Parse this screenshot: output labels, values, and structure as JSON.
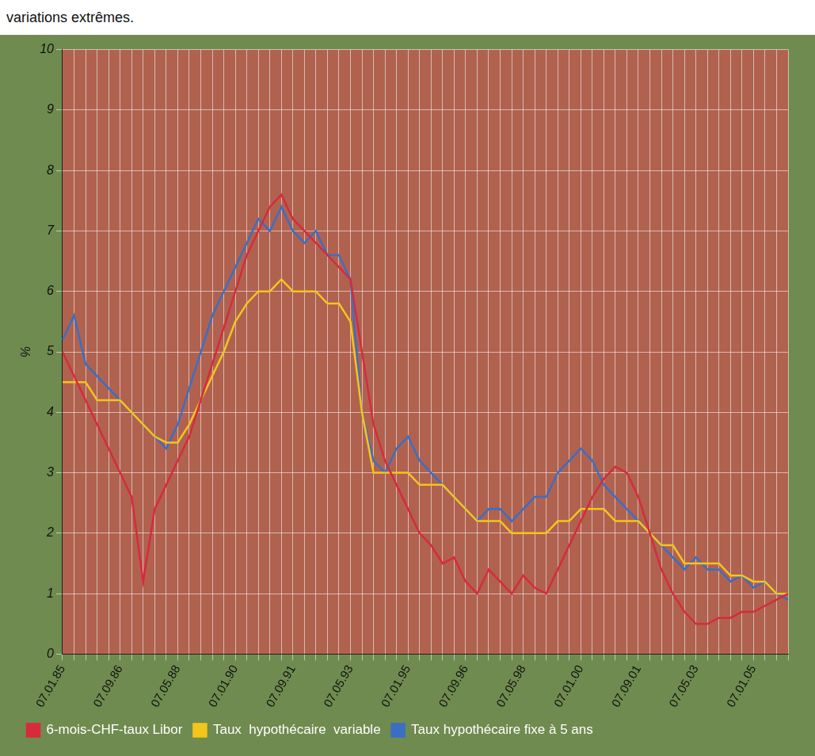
{
  "chart_data": {
    "type": "line",
    "subtitle": "variations extrêmes.",
    "y_label": "%",
    "categories": [
      "07.01.85",
      null,
      null,
      null,
      null,
      "07.09.86",
      null,
      null,
      null,
      null,
      "07.05.88",
      null,
      null,
      null,
      null,
      "07.01.90",
      null,
      null,
      null,
      null,
      "07.09.91",
      null,
      null,
      null,
      null,
      "07.05.93",
      null,
      null,
      null,
      null,
      "07.01.95",
      null,
      null,
      null,
      null,
      "07.09.96",
      null,
      null,
      null,
      null,
      "07.05.98",
      null,
      null,
      null,
      null,
      "07.01.00",
      null,
      null,
      null,
      null,
      "07.09.01",
      null,
      null,
      null,
      null,
      "07.05.03",
      null,
      null,
      null,
      null,
      "07.01.05",
      null,
      null,
      null
    ],
    "series": [
      {
        "name": "6-mois-CHF-taux Libor",
        "color": "#d62b3c",
        "values": [
          5.0,
          4.6,
          4.2,
          3.8,
          3.4,
          3.0,
          2.6,
          1.2,
          2.4,
          2.8,
          3.2,
          3.6,
          4.2,
          4.8,
          5.4,
          6.0,
          6.6,
          7.0,
          7.4,
          7.6,
          7.2,
          7.0,
          6.8,
          6.6,
          6.4,
          6.2,
          5.0,
          3.8,
          3.2,
          2.8,
          2.4,
          2.0,
          1.8,
          1.5,
          1.6,
          1.2,
          1.0,
          1.4,
          1.2,
          1.0,
          1.3,
          1.1,
          1.0,
          1.4,
          1.8,
          2.2,
          2.6,
          2.9,
          3.1,
          3.0,
          2.6,
          2.0,
          1.4,
          1.0,
          0.7,
          0.5,
          0.5,
          0.6,
          0.6,
          0.7,
          0.7,
          0.8,
          0.9,
          1.0
        ]
      },
      {
        "name": "Taux  hypothécaire  variable",
        "color": "#f4c51a",
        "values": [
          4.5,
          4.5,
          4.5,
          4.2,
          4.2,
          4.2,
          4.0,
          3.8,
          3.6,
          3.5,
          3.5,
          3.8,
          4.2,
          4.6,
          5.0,
          5.5,
          5.8,
          6.0,
          6.0,
          6.2,
          6.0,
          6.0,
          6.0,
          5.8,
          5.8,
          5.5,
          4.0,
          3.0,
          3.0,
          3.0,
          3.0,
          2.8,
          2.8,
          2.8,
          2.6,
          2.4,
          2.2,
          2.2,
          2.2,
          2.0,
          2.0,
          2.0,
          2.0,
          2.2,
          2.2,
          2.4,
          2.4,
          2.4,
          2.2,
          2.2,
          2.2,
          2.0,
          1.8,
          1.8,
          1.5,
          1.5,
          1.5,
          1.5,
          1.3,
          1.3,
          1.2,
          1.2,
          1.0,
          1.0
        ]
      },
      {
        "name": "Taux hypothécaire fixe à 5 ans",
        "color": "#3a6fc4",
        "values": [
          5.2,
          5.6,
          4.8,
          4.6,
          4.4,
          4.2,
          4.0,
          3.8,
          3.6,
          3.4,
          3.8,
          4.4,
          5.0,
          5.6,
          6.0,
          6.4,
          6.8,
          7.2,
          7.0,
          7.4,
          7.0,
          6.8,
          7.0,
          6.6,
          6.6,
          6.2,
          4.0,
          3.2,
          3.0,
          3.4,
          3.6,
          3.2,
          3.0,
          2.8,
          2.6,
          2.4,
          2.2,
          2.4,
          2.4,
          2.2,
          2.4,
          2.6,
          2.6,
          3.0,
          3.2,
          3.4,
          3.2,
          2.8,
          2.6,
          2.4,
          2.2,
          2.0,
          1.8,
          1.6,
          1.4,
          1.6,
          1.4,
          1.4,
          1.2,
          1.3,
          1.1,
          1.2,
          1.0,
          0.9
        ]
      }
    ],
    "ylim": [
      0,
      10
    ],
    "yticks": [
      0,
      1,
      2,
      3,
      4,
      5,
      6,
      7,
      8,
      9,
      10
    ],
    "grid": true,
    "legend": "bottom-left"
  }
}
